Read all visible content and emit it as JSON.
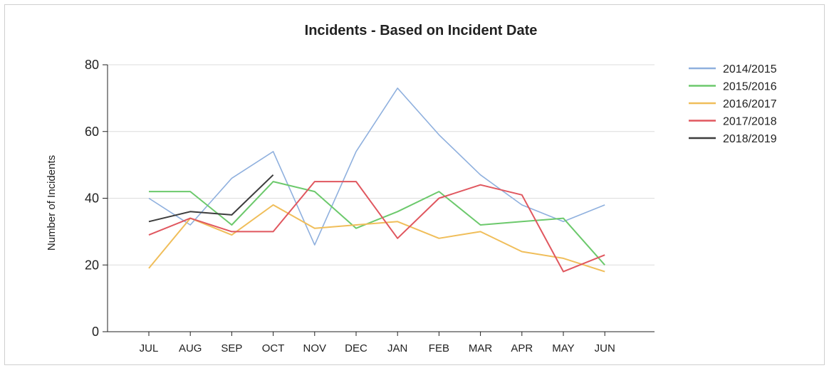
{
  "chart_data": {
    "type": "line",
    "title": "Incidents - Based on Incident Date",
    "xlabel": "",
    "ylabel": "Number of Incidents",
    "ylim": [
      0,
      80
    ],
    "yticks": [
      0,
      20,
      40,
      60,
      80
    ],
    "grid": "horizontal",
    "legend_position": "right",
    "categories": [
      "JUL",
      "AUG",
      "SEP",
      "OCT",
      "NOV",
      "DEC",
      "JAN",
      "FEB",
      "MAR",
      "APR",
      "MAY",
      "JUN"
    ],
    "series": [
      {
        "name": "2014/2015",
        "color": "#8fb0de",
        "values": [
          40,
          32,
          46,
          54,
          26,
          54,
          73,
          59,
          47,
          38,
          33,
          38
        ]
      },
      {
        "name": "2015/2016",
        "color": "#6cc96c",
        "values": [
          42,
          42,
          32,
          45,
          42,
          31,
          36,
          42,
          32,
          33,
          34,
          20
        ]
      },
      {
        "name": "2016/2017",
        "color": "#f0be5a",
        "values": [
          19,
          34,
          29,
          38,
          31,
          32,
          33,
          28,
          30,
          24,
          22,
          18
        ]
      },
      {
        "name": "2017/2018",
        "color": "#e0575f",
        "values": [
          29,
          34,
          30,
          30,
          45,
          45,
          28,
          40,
          44,
          41,
          18,
          23
        ]
      },
      {
        "name": "2018/2019",
        "color": "#3d3d3d",
        "values": [
          33,
          36,
          35,
          47,
          null,
          null,
          null,
          null,
          null,
          null,
          null,
          null
        ]
      }
    ]
  }
}
